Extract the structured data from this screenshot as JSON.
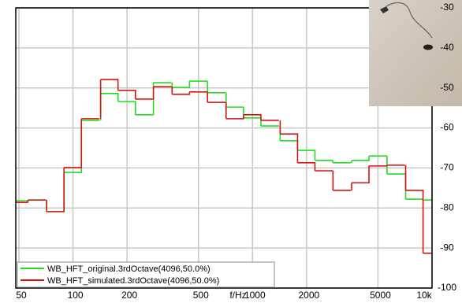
{
  "chart_data": {
    "type": "step",
    "x_label": "f/Hz",
    "log_x": true,
    "grid": true,
    "legend": "lower left",
    "xlim": [
      48,
      10000
    ],
    "ylim": [
      -100,
      -30
    ],
    "xticks": [
      50,
      100,
      200,
      500,
      1000,
      2000,
      5000,
      {
        "value": 10000,
        "label": "10k"
      }
    ],
    "yticks": [
      -100,
      -90,
      -80,
      -70,
      -60,
      -50,
      -40,
      -30
    ],
    "x": [
      50,
      63,
      80,
      100,
      125,
      160,
      200,
      250,
      315,
      400,
      500,
      630,
      800,
      1000,
      1250,
      1600,
      2000,
      2500,
      3150,
      4000,
      5000,
      6300,
      8000,
      10000
    ],
    "series": [
      {
        "name": "WB_HFT_original.3rdOctave(4096,50.0%)",
        "color": "#22dd22",
        "values": [
          -78.2,
          -78.0,
          -80.9,
          -71.1,
          -58.1,
          -51.4,
          -53.4,
          -56.7,
          -48.7,
          -49.9,
          -48.3,
          -51.2,
          -54.8,
          -57.5,
          -59.5,
          -63.2,
          -65.6,
          -68.1,
          -68.7,
          -68.1,
          -67.0,
          -71.5,
          -77.8,
          -78.0
        ]
      },
      {
        "name": "WB_HFT_simulated.3rdOctave(4096,50.0%)",
        "color": "#dd1111",
        "values": [
          -78.6,
          -78.0,
          -80.9,
          -69.9,
          -57.7,
          -47.9,
          -50.6,
          -52.8,
          -49.7,
          -51.6,
          -51.0,
          -53.6,
          -57.7,
          -56.7,
          -58.1,
          -61.5,
          -68.7,
          -70.7,
          -75.6,
          -73.7,
          -69.5,
          -69.3,
          -75.6,
          -91.3
        ]
      }
    ]
  }
}
